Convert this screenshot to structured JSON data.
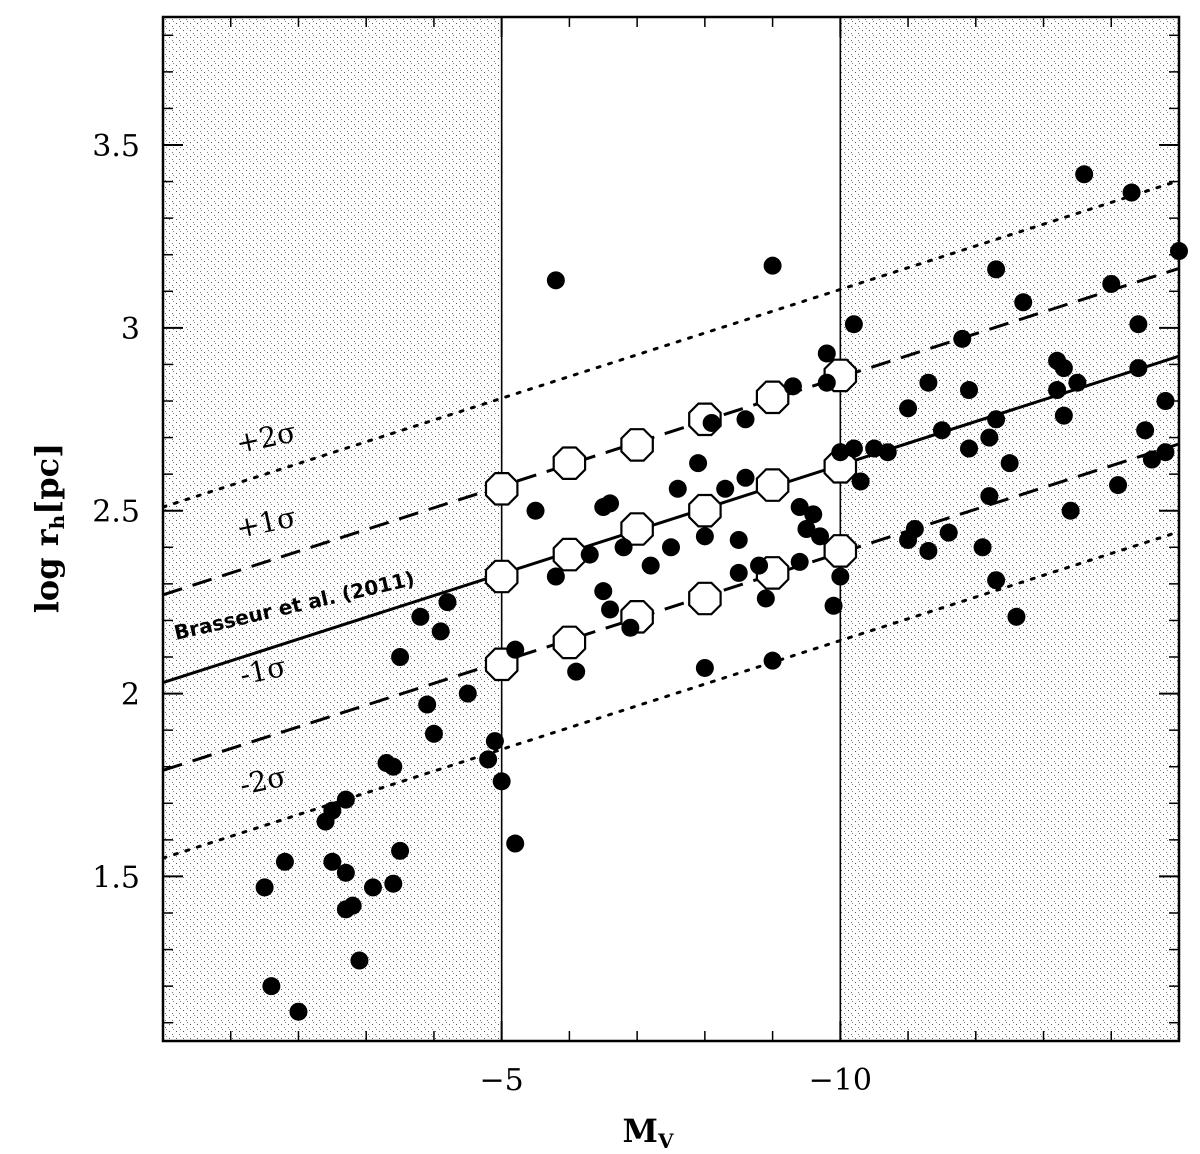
{
  "chart_data": {
    "type": "scatter",
    "xlabel": "M",
    "xlabel_sub": "V",
    "ylabel": "log r",
    "ylabel_sub": "h",
    "ylabel_unit": "[pc]",
    "xlim": [
      0,
      -15
    ],
    "ylim": [
      1.05,
      3.85
    ],
    "x_ticks": [
      -5,
      -10
    ],
    "x_minor_ticks": [
      -1,
      -2,
      -3,
      -4,
      -6,
      -7,
      -8,
      -9,
      -11,
      -12,
      -13,
      -14
    ],
    "y_ticks": [
      1.5,
      2,
      2.5,
      3,
      3.5
    ],
    "y_tick_labels": [
      "1.5",
      "2",
      "2.5",
      "3",
      "3.5"
    ],
    "y_minor_step": 0.1,
    "shaded_regions": [
      [
        0,
        -5
      ],
      [
        -10,
        -15
      ]
    ],
    "vertical_lines": [
      -5,
      -10
    ],
    "relation": {
      "label": "Brasseur et al. (2011)",
      "intercept": 2.03,
      "slope_per_mag": -0.0595,
      "sigma": 0.24
    },
    "band_labels": [
      "+2σ",
      "+1σ",
      "-1σ",
      "-2σ"
    ],
    "open_circles": [
      {
        "x": -5,
        "y": 2.56
      },
      {
        "x": -6,
        "y": 2.63
      },
      {
        "x": -7,
        "y": 2.68
      },
      {
        "x": -8,
        "y": 2.75
      },
      {
        "x": -9,
        "y": 2.81
      },
      {
        "x": -10,
        "y": 2.87
      },
      {
        "x": -5,
        "y": 2.32
      },
      {
        "x": -6,
        "y": 2.38
      },
      {
        "x": -7,
        "y": 2.45
      },
      {
        "x": -8,
        "y": 2.5
      },
      {
        "x": -9,
        "y": 2.57
      },
      {
        "x": -10,
        "y": 2.62
      },
      {
        "x": -5,
        "y": 2.08
      },
      {
        "x": -6,
        "y": 2.14
      },
      {
        "x": -7,
        "y": 2.21
      },
      {
        "x": -8,
        "y": 2.26
      },
      {
        "x": -9,
        "y": 2.33
      },
      {
        "x": -10,
        "y": 2.39
      }
    ],
    "filled_points": [
      {
        "x": -1.5,
        "y": 1.47
      },
      {
        "x": -1.6,
        "y": 1.2
      },
      {
        "x": -1.8,
        "y": 1.54
      },
      {
        "x": -2.0,
        "y": 1.13
      },
      {
        "x": -2.4,
        "y": 1.65
      },
      {
        "x": -2.5,
        "y": 1.68
      },
      {
        "x": -2.5,
        "y": 1.54
      },
      {
        "x": -2.7,
        "y": 1.71
      },
      {
        "x": -2.7,
        "y": 1.51
      },
      {
        "x": -2.7,
        "y": 1.41
      },
      {
        "x": -2.8,
        "y": 1.42
      },
      {
        "x": -2.9,
        "y": 1.27
      },
      {
        "x": -3.1,
        "y": 1.47
      },
      {
        "x": -3.3,
        "y": 1.81
      },
      {
        "x": -3.4,
        "y": 1.8
      },
      {
        "x": -3.4,
        "y": 1.48
      },
      {
        "x": -3.5,
        "y": 1.57
      },
      {
        "x": -3.5,
        "y": 2.1
      },
      {
        "x": -3.8,
        "y": 2.21
      },
      {
        "x": -3.9,
        "y": 1.97
      },
      {
        "x": -4.0,
        "y": 1.89
      },
      {
        "x": -4.1,
        "y": 2.17
      },
      {
        "x": -4.2,
        "y": 2.25
      },
      {
        "x": -4.5,
        "y": 2.0
      },
      {
        "x": -4.8,
        "y": 1.82
      },
      {
        "x": -4.9,
        "y": 1.87
      },
      {
        "x": -5.0,
        "y": 1.76
      },
      {
        "x": -5.2,
        "y": 1.59
      },
      {
        "x": -5.2,
        "y": 2.12
      },
      {
        "x": -5.5,
        "y": 2.5
      },
      {
        "x": -5.8,
        "y": 3.13
      },
      {
        "x": -5.8,
        "y": 2.32
      },
      {
        "x": -6.1,
        "y": 2.06
      },
      {
        "x": -6.3,
        "y": 2.38
      },
      {
        "x": -6.5,
        "y": 2.51
      },
      {
        "x": -6.5,
        "y": 2.28
      },
      {
        "x": -6.6,
        "y": 2.52
      },
      {
        "x": -6.6,
        "y": 2.23
      },
      {
        "x": -6.8,
        "y": 2.4
      },
      {
        "x": -6.9,
        "y": 2.18
      },
      {
        "x": -7.2,
        "y": 2.35
      },
      {
        "x": -7.5,
        "y": 2.4
      },
      {
        "x": -7.6,
        "y": 2.56
      },
      {
        "x": -7.9,
        "y": 2.63
      },
      {
        "x": -8.0,
        "y": 2.43
      },
      {
        "x": -8.0,
        "y": 2.07
      },
      {
        "x": -8.1,
        "y": 2.74
      },
      {
        "x": -8.3,
        "y": 2.56
      },
      {
        "x": -8.5,
        "y": 2.42
      },
      {
        "x": -8.5,
        "y": 2.33
      },
      {
        "x": -8.6,
        "y": 2.75
      },
      {
        "x": -8.6,
        "y": 2.59
      },
      {
        "x": -8.8,
        "y": 2.35
      },
      {
        "x": -8.9,
        "y": 2.26
      },
      {
        "x": -9.0,
        "y": 3.17
      },
      {
        "x": -9.0,
        "y": 2.09
      },
      {
        "x": -9.3,
        "y": 2.84
      },
      {
        "x": -9.4,
        "y": 2.36
      },
      {
        "x": -9.4,
        "y": 2.51
      },
      {
        "x": -9.5,
        "y": 2.45
      },
      {
        "x": -9.6,
        "y": 2.49
      },
      {
        "x": -9.7,
        "y": 2.43
      },
      {
        "x": -9.8,
        "y": 2.93
      },
      {
        "x": -9.8,
        "y": 2.85
      },
      {
        "x": -9.9,
        "y": 2.24
      },
      {
        "x": -10.0,
        "y": 2.66
      },
      {
        "x": -10.0,
        "y": 2.32
      },
      {
        "x": -10.2,
        "y": 2.67
      },
      {
        "x": -10.2,
        "y": 3.01
      },
      {
        "x": -10.3,
        "y": 2.58
      },
      {
        "x": -10.5,
        "y": 2.67
      },
      {
        "x": -10.7,
        "y": 2.66
      },
      {
        "x": -11.0,
        "y": 2.78
      },
      {
        "x": -11.0,
        "y": 2.42
      },
      {
        "x": -11.1,
        "y": 2.45
      },
      {
        "x": -11.3,
        "y": 2.85
      },
      {
        "x": -11.3,
        "y": 2.39
      },
      {
        "x": -11.5,
        "y": 2.72
      },
      {
        "x": -11.6,
        "y": 2.44
      },
      {
        "x": -11.8,
        "y": 2.97
      },
      {
        "x": -11.9,
        "y": 2.67
      },
      {
        "x": -11.9,
        "y": 2.83
      },
      {
        "x": -12.1,
        "y": 2.4
      },
      {
        "x": -12.2,
        "y": 2.7
      },
      {
        "x": -12.2,
        "y": 2.54
      },
      {
        "x": -12.3,
        "y": 2.75
      },
      {
        "x": -12.3,
        "y": 2.31
      },
      {
        "x": -12.3,
        "y": 3.16
      },
      {
        "x": -12.5,
        "y": 2.63
      },
      {
        "x": -12.6,
        "y": 2.21
      },
      {
        "x": -12.7,
        "y": 3.07
      },
      {
        "x": -13.2,
        "y": 2.91
      },
      {
        "x": -13.2,
        "y": 2.83
      },
      {
        "x": -13.3,
        "y": 2.89
      },
      {
        "x": -13.3,
        "y": 2.76
      },
      {
        "x": -13.4,
        "y": 2.5
      },
      {
        "x": -13.5,
        "y": 2.85
      },
      {
        "x": -13.6,
        "y": 3.42
      },
      {
        "x": -14.0,
        "y": 3.12
      },
      {
        "x": -14.1,
        "y": 2.57
      },
      {
        "x": -14.3,
        "y": 3.37
      },
      {
        "x": -14.4,
        "y": 3.01
      },
      {
        "x": -14.4,
        "y": 2.89
      },
      {
        "x": -14.5,
        "y": 2.72
      },
      {
        "x": -14.6,
        "y": 2.64
      },
      {
        "x": -14.8,
        "y": 2.8
      },
      {
        "x": -14.8,
        "y": 2.66
      },
      {
        "x": -15.0,
        "y": 3.21
      }
    ]
  }
}
